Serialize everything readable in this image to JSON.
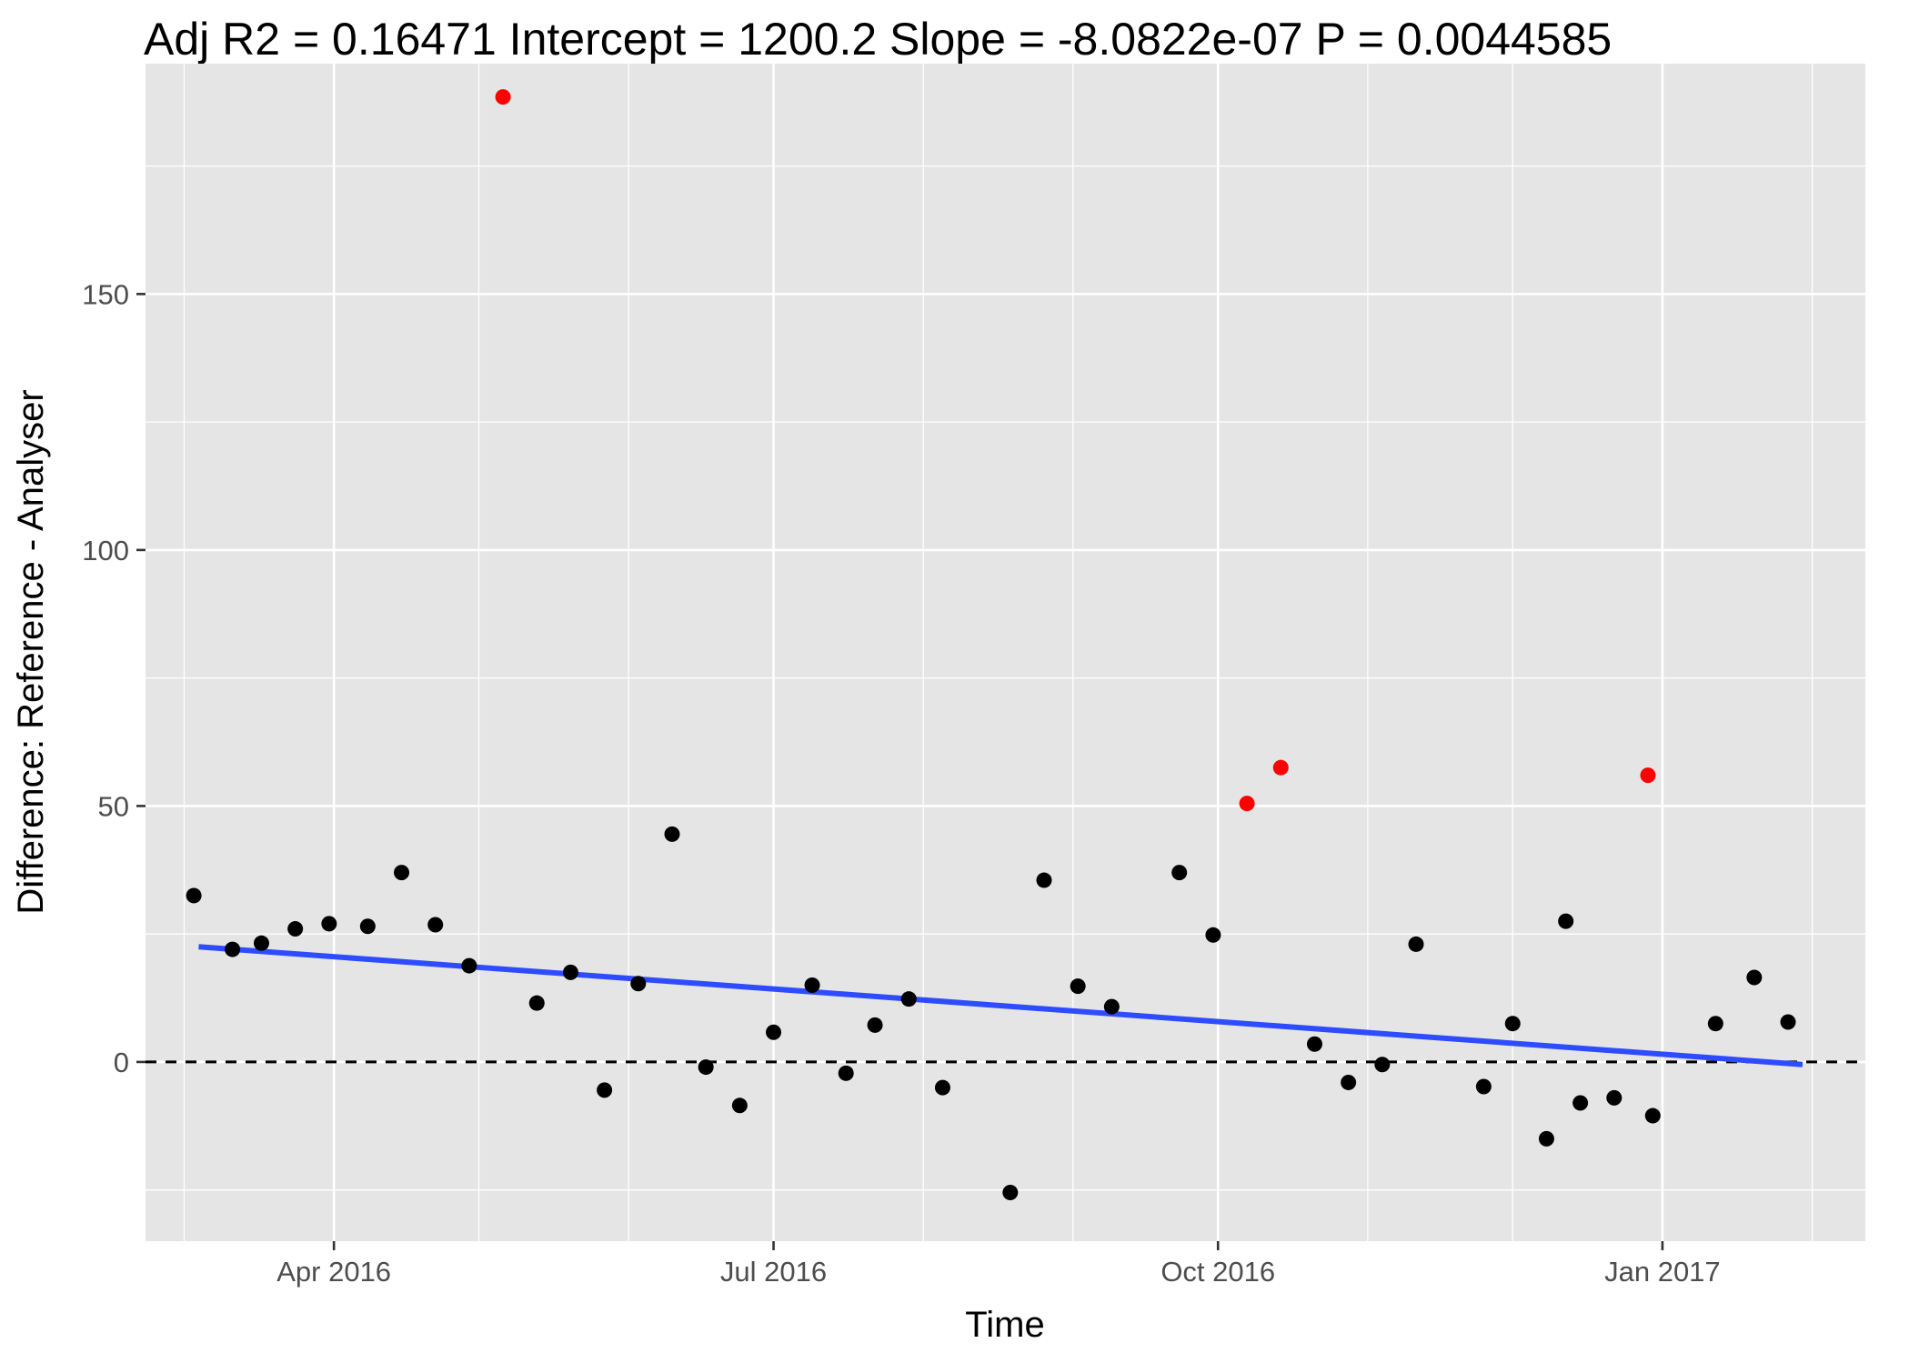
{
  "chart_data": {
    "type": "scatter",
    "title": "Adj R2 =  0.16471 Intercept = 1200.2 Slope = -8.0822e-07 P = 0.0044585",
    "xlabel": "Time",
    "ylabel": "Difference: Reference - Analyser",
    "x_type": "date",
    "xlim": [
      "2016-02-22",
      "2017-02-12"
    ],
    "ylim": [
      -35,
      195
    ],
    "x_ticks": [
      {
        "date": "2016-04-01",
        "label": "Apr 2016"
      },
      {
        "date": "2016-07-01",
        "label": "Jul 2016"
      },
      {
        "date": "2016-10-01",
        "label": "Oct 2016"
      },
      {
        "date": "2017-01-01",
        "label": "Jan 2017"
      }
    ],
    "x_minor_grid": [
      "2016-03-01",
      "2016-05-01",
      "2016-06-01",
      "2016-08-01",
      "2016-09-01",
      "2016-11-01",
      "2016-12-01",
      "2017-02-01"
    ],
    "y_ticks": [
      0,
      50,
      100,
      150
    ],
    "y_minor_grid": [
      -25,
      25,
      75,
      125,
      175
    ],
    "grid": true,
    "colors": {
      "panel_background": "#e5e5e5",
      "grid": "#ffffff",
      "normal_point": "#000000",
      "outlier_point": "#ff0000",
      "regression_line": "#2e4cff",
      "zero_line": "#000000"
    },
    "reference_line": {
      "y": 0,
      "style": "dashed"
    },
    "regression_line": {
      "x": [
        "2016-03-04",
        "2017-01-30"
      ],
      "y": [
        22.5,
        -0.5
      ]
    },
    "series": [
      {
        "category": "normal",
        "points": [
          {
            "x": "2016-03-03",
            "y": 32.5
          },
          {
            "x": "2016-03-11",
            "y": 22
          },
          {
            "x": "2016-03-17",
            "y": 23.2
          },
          {
            "x": "2016-03-24",
            "y": 26
          },
          {
            "x": "2016-03-31",
            "y": 27
          },
          {
            "x": "2016-04-08",
            "y": 26.5
          },
          {
            "x": "2016-04-15",
            "y": 37
          },
          {
            "x": "2016-04-22",
            "y": 26.8
          },
          {
            "x": "2016-04-29",
            "y": 18.8
          },
          {
            "x": "2016-05-13",
            "y": 11.5
          },
          {
            "x": "2016-05-20",
            "y": 17.5
          },
          {
            "x": "2016-05-27",
            "y": -5.5
          },
          {
            "x": "2016-06-03",
            "y": 15.3
          },
          {
            "x": "2016-06-10",
            "y": 44.5
          },
          {
            "x": "2016-06-17",
            "y": -1
          },
          {
            "x": "2016-06-24",
            "y": -8.5
          },
          {
            "x": "2016-07-01",
            "y": 5.8
          },
          {
            "x": "2016-07-09",
            "y": 15
          },
          {
            "x": "2016-07-16",
            "y": -2.2
          },
          {
            "x": "2016-07-22",
            "y": 7.2
          },
          {
            "x": "2016-07-29",
            "y": 12.3
          },
          {
            "x": "2016-08-05",
            "y": -5
          },
          {
            "x": "2016-08-19",
            "y": -25.5
          },
          {
            "x": "2016-08-26",
            "y": 35.5
          },
          {
            "x": "2016-09-02",
            "y": 14.8
          },
          {
            "x": "2016-09-09",
            "y": 10.8
          },
          {
            "x": "2016-09-23",
            "y": 37
          },
          {
            "x": "2016-09-30",
            "y": 24.8
          },
          {
            "x": "2016-10-21",
            "y": 3.5
          },
          {
            "x": "2016-10-28",
            "y": -4
          },
          {
            "x": "2016-11-04",
            "y": -0.5
          },
          {
            "x": "2016-11-11",
            "y": 23
          },
          {
            "x": "2016-11-25",
            "y": -4.8
          },
          {
            "x": "2016-12-01",
            "y": 7.5
          },
          {
            "x": "2016-12-08",
            "y": -15
          },
          {
            "x": "2016-12-12",
            "y": 27.5
          },
          {
            "x": "2016-12-15",
            "y": -8
          },
          {
            "x": "2016-12-22",
            "y": -7
          },
          {
            "x": "2016-12-30",
            "y": -10.5
          },
          {
            "x": "2017-01-12",
            "y": 7.5
          },
          {
            "x": "2017-01-20",
            "y": 16.5
          },
          {
            "x": "2017-01-27",
            "y": 7.8
          }
        ]
      },
      {
        "category": "outlier",
        "points": [
          {
            "x": "2016-05-06",
            "y": 188.5
          },
          {
            "x": "2016-10-07",
            "y": 50.5
          },
          {
            "x": "2016-10-14",
            "y": 57.5
          },
          {
            "x": "2016-12-29",
            "y": 56
          }
        ]
      }
    ]
  }
}
